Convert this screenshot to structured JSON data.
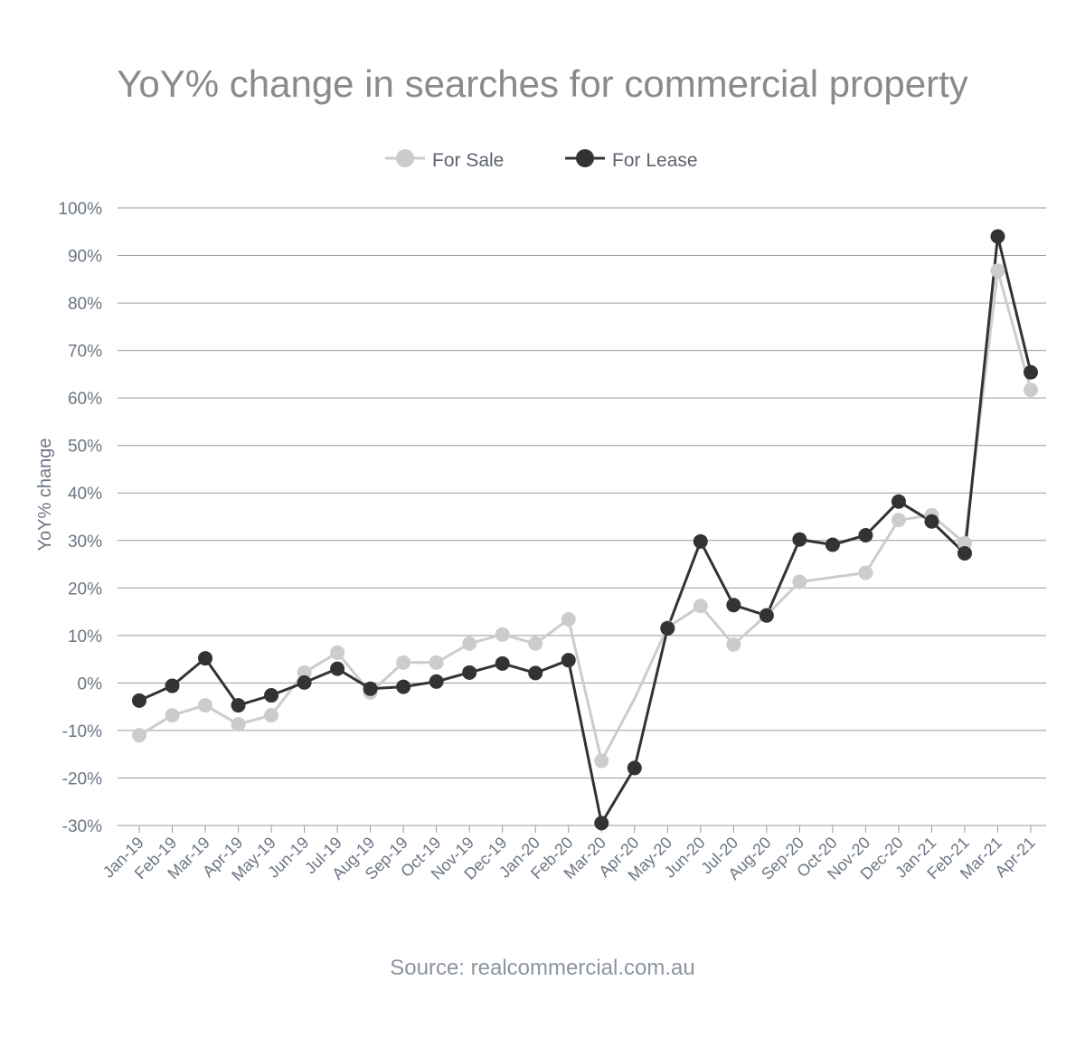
{
  "chart_data": {
    "type": "line",
    "title": "YoY% change in searches for commercial property",
    "ylabel": "YoY% change",
    "xlabel": "",
    "source": "Source: realcommercial.com.au",
    "ylim": [
      -30,
      100
    ],
    "yticks": [
      -30,
      -20,
      -10,
      0,
      10,
      20,
      30,
      40,
      50,
      60,
      70,
      80,
      90,
      100
    ],
    "ytick_suffix": "%",
    "grid": "horizontal",
    "legend_position": "top-center",
    "categories": [
      "Jan-19",
      "Feb-19",
      "Mar-19",
      "Apr-19",
      "May-19",
      "Jun-19",
      "Jul-19",
      "Aug-19",
      "Sep-19",
      "Oct-19",
      "Nov-19",
      "Dec-19",
      "Jan-20",
      "Feb-20",
      "Mar-20",
      "Apr-20",
      "May-20",
      "Jun-20",
      "Jul-20",
      "Aug-20",
      "Sep-20",
      "Oct-20",
      "Nov-20",
      "Dec-20",
      "Jan-21",
      "Feb-21",
      "Mar-21",
      "Apr-21"
    ],
    "series": [
      {
        "name": "For Sale",
        "color": "#cccccc",
        "values": [
          -11,
          -6.8,
          -4.7,
          -8.7,
          -6.8,
          2.2,
          6.4,
          -2,
          4.3,
          4.3,
          8.3,
          10.2,
          8.3,
          13.4,
          -16.4,
          -3.3,
          11.7,
          16.2,
          8.1,
          14.3,
          21.3,
          null,
          23.2,
          34.3,
          35.3,
          29.4,
          86.8,
          61.7
        ],
        "markers": [
          true,
          true,
          true,
          true,
          true,
          true,
          true,
          true,
          true,
          true,
          true,
          true,
          true,
          true,
          true,
          false,
          true,
          true,
          true,
          true,
          true,
          false,
          true,
          true,
          true,
          true,
          true,
          true
        ]
      },
      {
        "name": "For Lease",
        "color": "#333333",
        "values": [
          -3.7,
          -0.6,
          5.2,
          -4.7,
          -2.6,
          0.1,
          3,
          -1.2,
          -0.8,
          0.3,
          2.2,
          4.1,
          2.1,
          4.8,
          -29.5,
          -17.9,
          11.5,
          29.8,
          16.4,
          14.2,
          30.2,
          29.1,
          31.1,
          38.2,
          34,
          27.3,
          94,
          65.4
        ],
        "markers": [
          true,
          true,
          true,
          true,
          true,
          true,
          true,
          true,
          true,
          true,
          true,
          true,
          true,
          true,
          true,
          true,
          true,
          true,
          true,
          true,
          true,
          true,
          true,
          true,
          true,
          true,
          true,
          true
        ]
      }
    ]
  }
}
